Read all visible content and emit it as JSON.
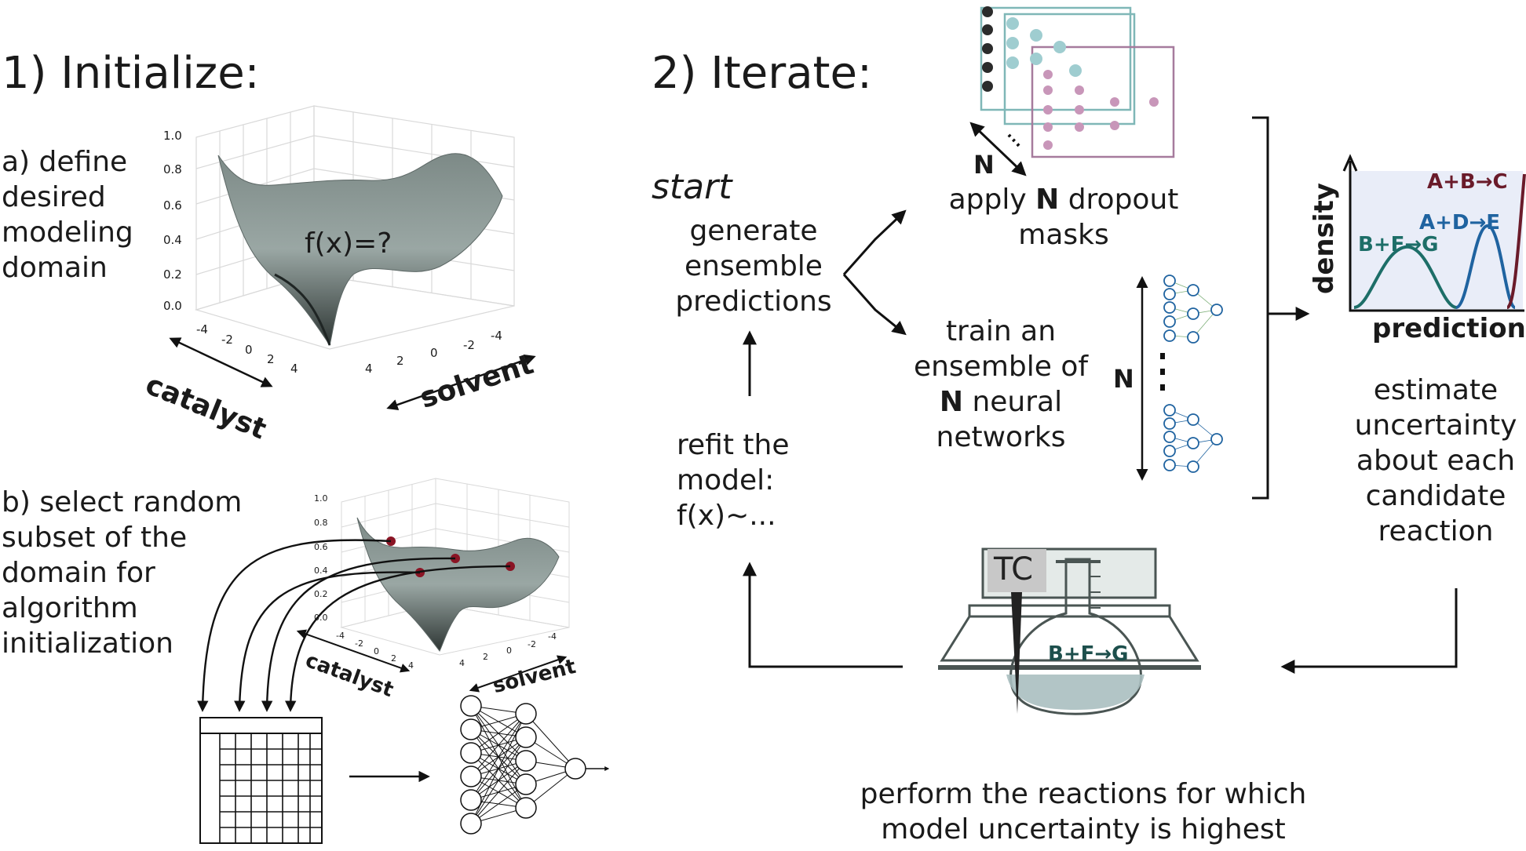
{
  "headings": {
    "initialize": "1) Initialize:",
    "iterate": "2) Iterate:"
  },
  "initialize": {
    "step_a": [
      "a) define",
      "desired",
      "modeling",
      "domain"
    ],
    "step_b": [
      "b) select random",
      "subset of the",
      "domain for",
      "algorithm",
      "initialization"
    ],
    "surface_label": "f(x)=?",
    "axis_catalyst": "catalyst",
    "axis_solvent": "solvent",
    "z_ticks": [
      "0.0",
      "0.2",
      "0.4",
      "0.6",
      "0.8",
      "1.0"
    ],
    "catalyst_ticks": [
      "-4",
      "-2",
      "0",
      "2",
      "4"
    ],
    "solvent_ticks": [
      "4",
      "2",
      "0",
      "-2",
      "-4"
    ]
  },
  "iterate": {
    "start": "start",
    "generate": [
      "generate",
      "ensemble",
      "predictions"
    ],
    "dropout": {
      "line1_pre": "apply ",
      "line1_n": "N",
      "line1_post": " dropout",
      "line2": "masks",
      "n_label": "N"
    },
    "ensemble": {
      "line1": "train an",
      "line2": "ensemble of",
      "line3_n": "N",
      "line3_post": " neural",
      "line4": "networks",
      "n_label": "N"
    },
    "density_plot": {
      "ylabel": "density",
      "xlabel": "prediction",
      "series": [
        {
          "label": "B+F→G",
          "color": "#1d6e68"
        },
        {
          "label": "A+D→E",
          "color": "#1f63a0"
        },
        {
          "label": "A+B→C",
          "color": "#6a1b2a"
        }
      ]
    },
    "estimate": [
      "estimate",
      "uncertainty",
      "about each",
      "candidate",
      "reaction"
    ],
    "refit": [
      "refit the",
      "model:",
      "f(x)~..."
    ],
    "flask": {
      "probe_label": "TC",
      "reaction_label": "B+F→G"
    },
    "perform": [
      "perform the reactions for which",
      "model uncertainty is highest"
    ]
  }
}
